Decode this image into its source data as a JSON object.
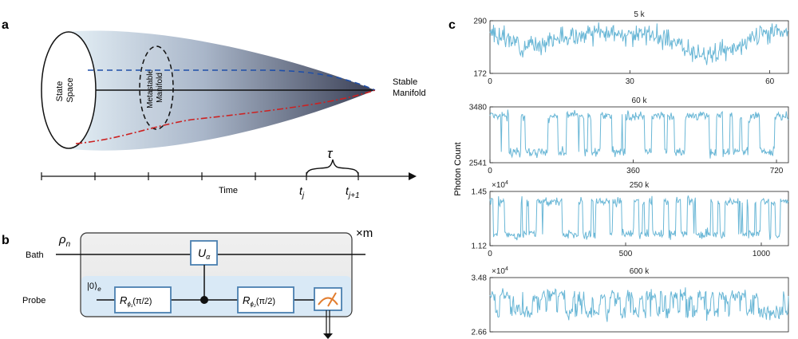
{
  "panel_a": {
    "letter": "a",
    "state_space": [
      "State",
      "Space"
    ],
    "metastable": [
      "Metastable",
      "Manifold"
    ],
    "stable": [
      "Stable",
      "Manifold"
    ],
    "time_label": "Time",
    "tau": "τ",
    "tj": "t",
    "tj_sub": "j",
    "tj1_sub": "j+1"
  },
  "panel_b": {
    "letter": "b",
    "rho": "ρ",
    "rho_sub": "n",
    "repeat": "×m",
    "bath": "Bath",
    "probe": "Probe",
    "ket": "|0⟩",
    "ket_sub": "e",
    "u_gate": "U",
    "u_sub": "α",
    "r1": "R",
    "r1_sub": "ϕ₁",
    "r1_arg": "(π/2)",
    "r2": "R",
    "r2_sub": "ϕ₂",
    "r2_arg": "(π/2)"
  },
  "panel_c": {
    "letter": "c",
    "ylabel": "Photon Count",
    "line_color": "#6ab7d6"
  },
  "chart_data": [
    {
      "type": "line",
      "title": "5 k",
      "xlim": [
        0,
        64
      ],
      "ylim": [
        172,
        290
      ],
      "xticks": [
        "0",
        "30",
        "60"
      ],
      "xtick_values": [
        0,
        30,
        60
      ],
      "yticks": [
        "172",
        "290"
      ],
      "ytick_values": [
        172,
        290
      ],
      "exponent": "",
      "levels": [
        [
          0,
          262
        ],
        [
          8,
          232
        ],
        [
          15,
          252
        ],
        [
          25,
          262
        ],
        [
          35,
          258
        ],
        [
          40,
          238
        ],
        [
          47,
          212
        ],
        [
          53,
          228
        ],
        [
          58,
          262
        ],
        [
          64,
          268
        ]
      ],
      "noise": 18,
      "seed": 3
    },
    {
      "type": "line",
      "title": "60 k",
      "xlim": [
        0,
        750
      ],
      "ylim": [
        2541,
        3480
      ],
      "xticks": [
        "0",
        "360",
        "720"
      ],
      "xtick_values": [
        0,
        360,
        720
      ],
      "yticks": [
        "2541",
        "3480"
      ],
      "ytick_values": [
        2541,
        3480
      ],
      "exponent": "",
      "telegraph": {
        "high": 3330,
        "low": 2720,
        "switches": 34
      },
      "noise": 70,
      "seed": 11
    },
    {
      "type": "line",
      "title": "250 k",
      "xlim": [
        0,
        1100
      ],
      "ylim": [
        1.12,
        1.45
      ],
      "xticks": [
        "0",
        "500",
        "1000"
      ],
      "xtick_values": [
        0,
        500,
        1000
      ],
      "yticks": [
        "1.12",
        "1.45"
      ],
      "ytick_values": [
        1.12,
        1.45
      ],
      "exponent": "×10",
      "exponent_power": "4",
      "telegraph": {
        "high": 1.39,
        "low": 1.19,
        "switches": 60
      },
      "noise": 0.025,
      "seed": 23
    },
    {
      "type": "line",
      "title": "600 k",
      "xlim": [
        0,
        1100
      ],
      "ylim": [
        2.66,
        3.48
      ],
      "xticks": [],
      "xtick_values": [],
      "yticks": [
        "2.66",
        "3.48"
      ],
      "ytick_values": [
        2.66,
        3.48
      ],
      "exponent": "×10",
      "exponent_power": "4",
      "telegraph": {
        "high": 3.2,
        "low": 2.95,
        "switches": 90
      },
      "noise": 0.09,
      "seed": 41
    }
  ]
}
